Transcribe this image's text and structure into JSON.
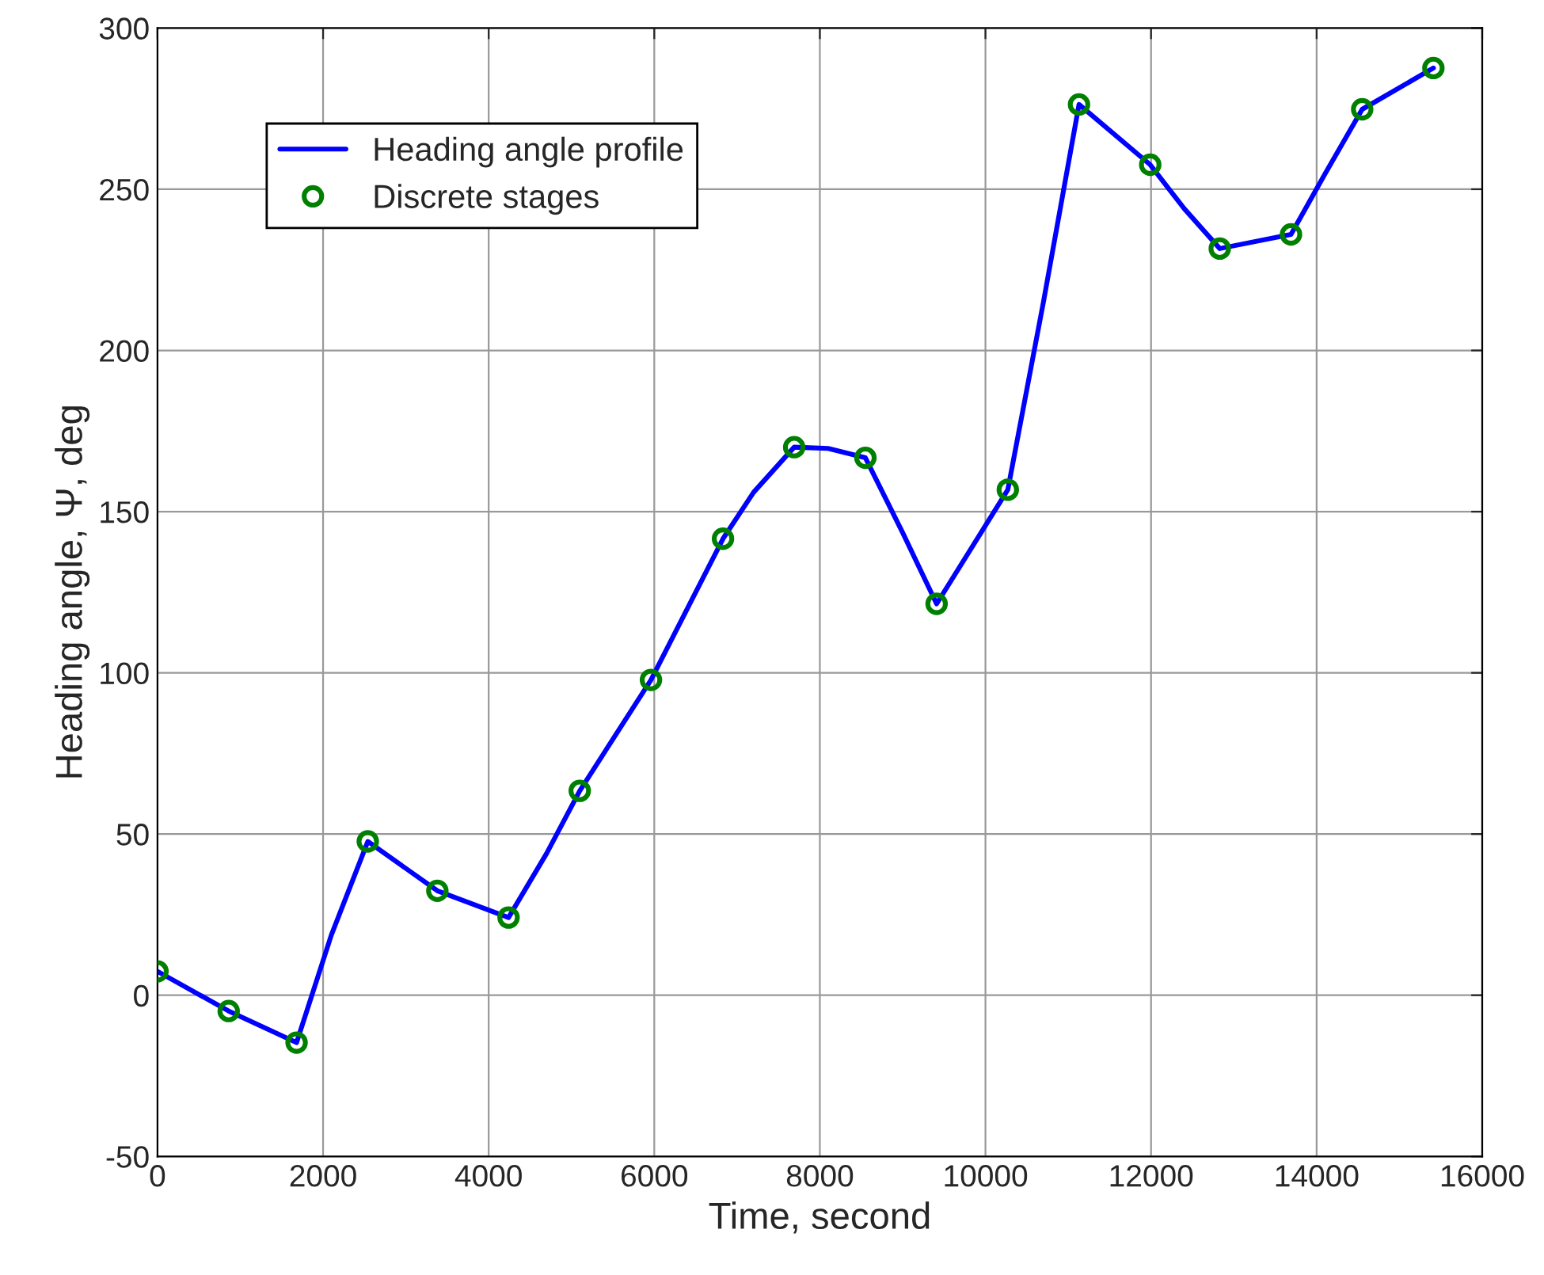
{
  "chart_data": {
    "type": "line",
    "xlabel": "Time, second",
    "ylabel": "Heading angle, Ψ, deg",
    "xlim": [
      0,
      16000
    ],
    "xticks": [
      0,
      2000,
      4000,
      6000,
      8000,
      10000,
      12000,
      14000,
      16000
    ],
    "ylim": [
      -50,
      300
    ],
    "yticks": [
      -50,
      0,
      50,
      100,
      150,
      200,
      250,
      300
    ],
    "grid": true,
    "legend": "top left",
    "series": [
      {
        "name": "Heading angle profile",
        "color": "#0000ff",
        "marker": "none",
        "line_style": "solid",
        "x": [
          0,
          860,
          1680,
          2100,
          2540,
          3380,
          4240,
          4700,
          5100,
          5960,
          6830,
          7200,
          7690,
          8100,
          8550,
          9000,
          9410,
          10270,
          10700,
          11130,
          11990,
          12400,
          12830,
          13690,
          14100,
          14550,
          15410
        ],
        "values": [
          7.4,
          -4.9,
          -14.7,
          18.7,
          47.7,
          32.4,
          24.1,
          44,
          63.4,
          97.8,
          141.6,
          156,
          170,
          169.6,
          166.7,
          143.5,
          121.4,
          156.8,
          215,
          276.3,
          257.6,
          244,
          231.6,
          236,
          254.7,
          274.8,
          287.6
        ]
      },
      {
        "name": "Discrete stages",
        "type": "scatter",
        "color": "#008000",
        "marker": "circle",
        "x": [
          0,
          860,
          1680,
          2540,
          3380,
          4240,
          5100,
          5960,
          6830,
          7690,
          8550,
          9410,
          10270,
          11130,
          11990,
          12830,
          13690,
          14550,
          15410
        ],
        "values": [
          7.4,
          -4.9,
          -14.7,
          47.7,
          32.4,
          24.1,
          63.4,
          97.8,
          141.6,
          170,
          166.7,
          121.4,
          156.8,
          276.3,
          257.6,
          231.6,
          236,
          274.8,
          287.6
        ]
      }
    ]
  }
}
